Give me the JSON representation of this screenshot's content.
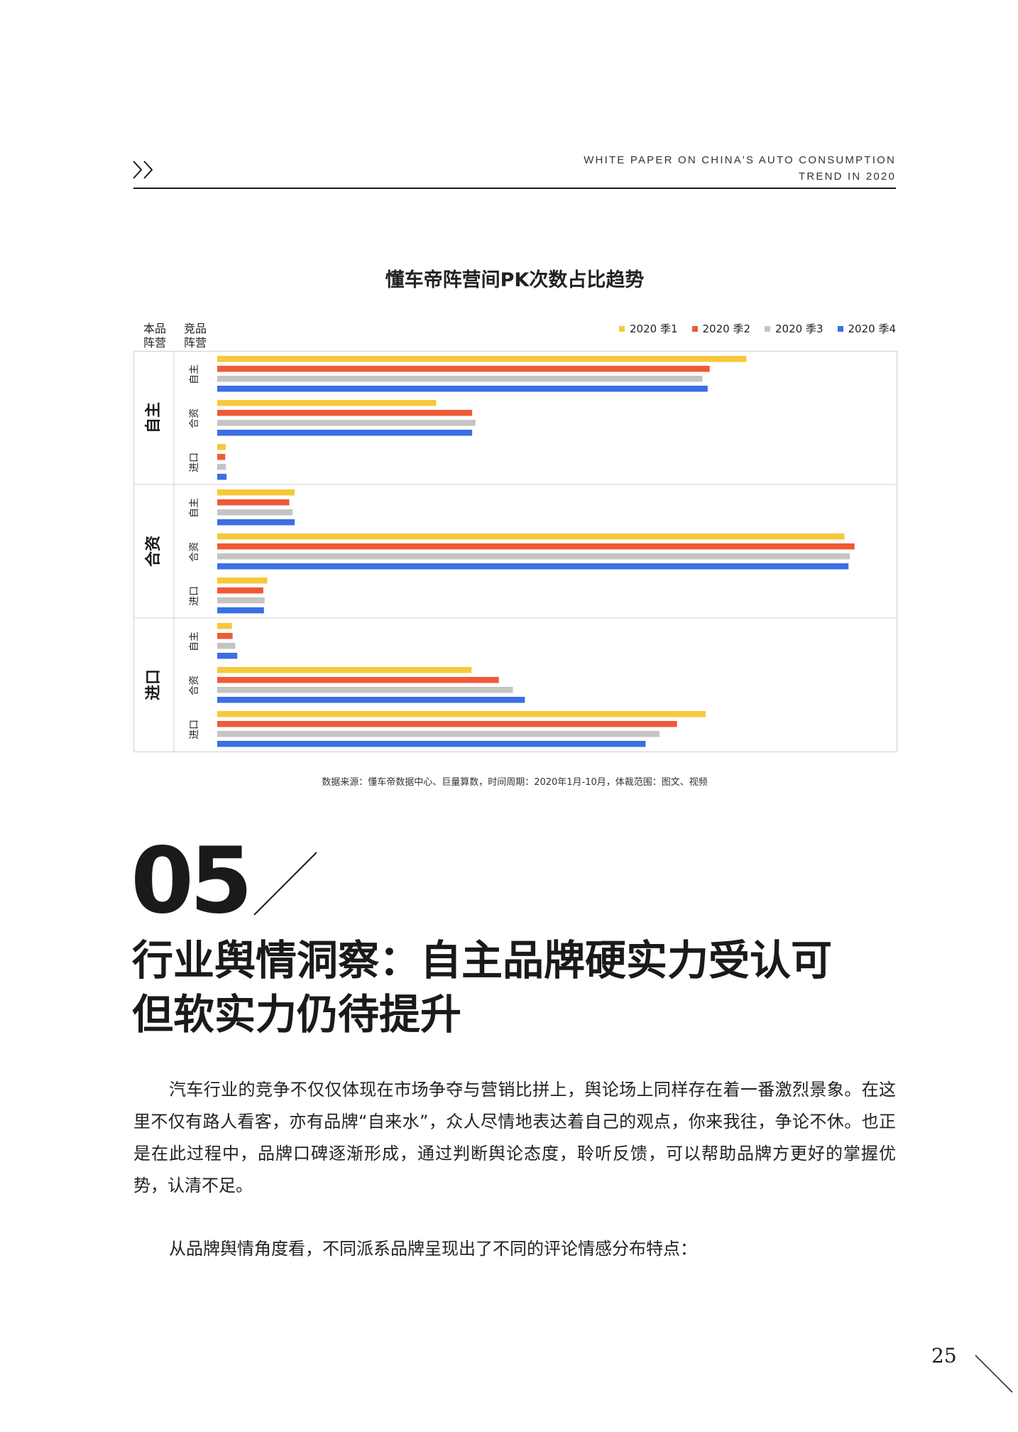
{
  "header": {
    "line1": "WHITE PAPER ON CHINA'S AUTO CONSUMPTION",
    "line2": "TREND IN 2020"
  },
  "chart_data": {
    "type": "bar",
    "orientation": "horizontal",
    "title": "懂车帝阵营间PK次数占比趋势",
    "row_header_outer": [
      "本品",
      "阵营"
    ],
    "row_header_inner": [
      "竞品",
      "阵营"
    ],
    "groups": [
      "自主",
      "合资",
      "进口"
    ],
    "categories": [
      "自主",
      "合资",
      "进口"
    ],
    "series": [
      {
        "name": "2020 季1",
        "color": "#f6c83a",
        "values": [
          [
            79.3,
            32.8,
            1.3
          ],
          [
            11.6,
            94.0,
            7.5
          ],
          [
            2.2,
            38.1,
            73.2
          ]
        ]
      },
      {
        "name": "2020 季2",
        "color": "#ee5a36",
        "values": [
          [
            73.8,
            38.2,
            1.2
          ],
          [
            10.8,
            95.5,
            6.9
          ],
          [
            2.3,
            42.2,
            68.9
          ]
        ]
      },
      {
        "name": "2020 季3",
        "color": "#c4c4c4",
        "values": [
          [
            72.7,
            38.7,
            1.3
          ],
          [
            11.3,
            94.8,
            7.1
          ],
          [
            2.7,
            44.3,
            66.3
          ]
        ]
      },
      {
        "name": "2020 季4",
        "color": "#3b6fe3",
        "values": [
          [
            73.5,
            38.2,
            1.4
          ],
          [
            11.6,
            94.6,
            7.0
          ],
          [
            3.0,
            46.1,
            64.2
          ]
        ]
      }
    ],
    "grid": false,
    "legend": "top-right"
  },
  "source": "数据来源：懂车帝数据中心、巨量算数，时间周期：2020年1月-10月，体裁范围：图文、视频",
  "section": {
    "number": "05",
    "title_line1": "行业舆情洞察：自主品牌硬实力受认可",
    "title_line2": "但软实力仍待提升"
  },
  "body": {
    "paragraph1": "汽车行业的竞争不仅仅体现在市场争夺与营销比拼上，舆论场上同样存在着一番激烈景象。在这里不仅有路人看客，亦有品牌“自来水”，众人尽情地表达着自己的观点，你来我往，争论不休。也正是在此过程中，品牌口碑逐渐形成，通过判断舆论态度，聆听反馈，可以帮助品牌方更好的掌握优势，认清不足。",
    "paragraph2": "从品牌舆情角度看，不同派系品牌呈现出了不同的评论情感分布特点："
  },
  "page_number": "25"
}
